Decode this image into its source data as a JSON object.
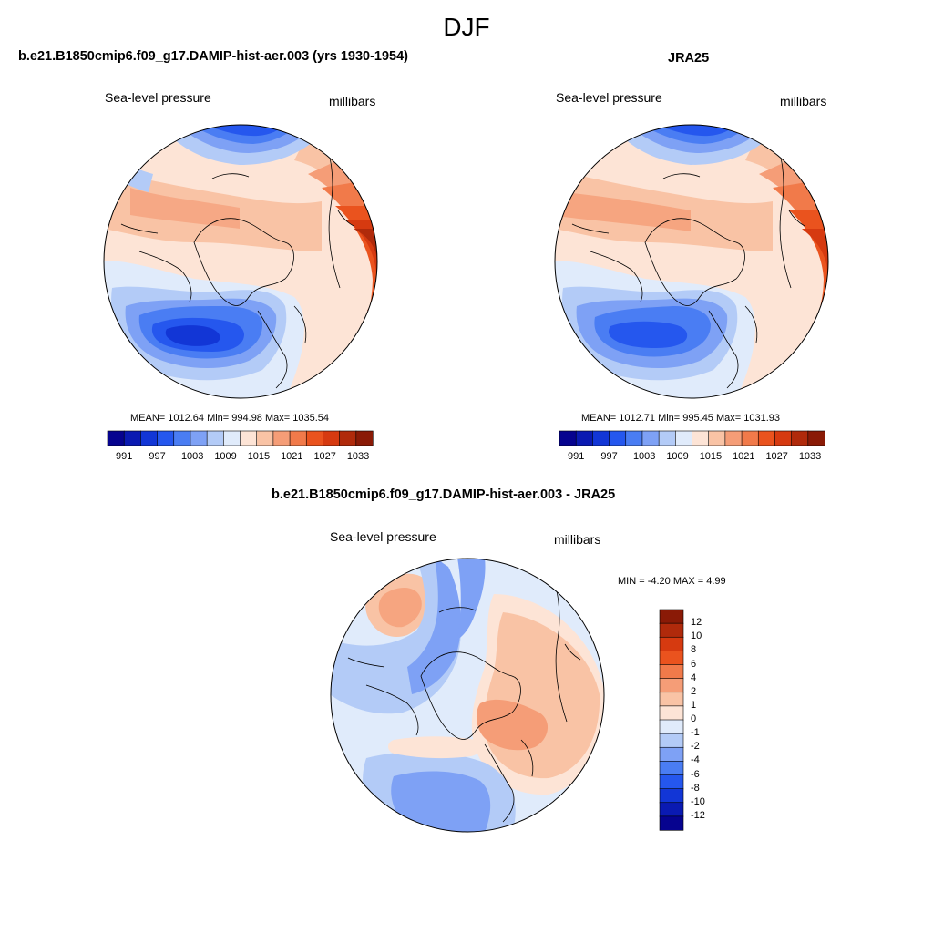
{
  "season": "DJF",
  "colors": {
    "abs_palette": [
      "#06038f",
      "#0a1ab2",
      "#1236d6",
      "#2557ee",
      "#4a7df3",
      "#7ea1f5",
      "#b3cbf7",
      "#e0ebfb",
      "#fde4d6",
      "#f9c3a5",
      "#f59d77",
      "#f17a4a",
      "#ea531e",
      "#d63a10",
      "#b02a0b",
      "#8a1a06"
    ],
    "diff_palette": [
      "#06038f",
      "#0a1ab2",
      "#1236d6",
      "#2557ee",
      "#4a7df3",
      "#7ea1f5",
      "#b3cbf7",
      "#e0ebfb",
      "#fde4d6",
      "#f9c3a5",
      "#f59d77",
      "#f17a4a",
      "#ea531e",
      "#d63a10",
      "#b02a0b",
      "#8a1a06"
    ]
  },
  "panels": [
    {
      "id": "model",
      "title": "b.e21.B1850cmip6.f09_g17.DAMIP-hist-aer.003 (yrs 1930-1954)",
      "left_label": "Sea-level pressure",
      "right_label": "millibars",
      "stats": "MEAN= 1012.64  Min= 994.98  Max= 1035.54",
      "colorbar_ticks": [
        "991",
        "997",
        "1003",
        "1009",
        "1015",
        "1021",
        "1027",
        "1033"
      ]
    },
    {
      "id": "obs",
      "title": "JRA25",
      "left_label": "Sea-level pressure",
      "right_label": "millibars",
      "stats": "MEAN= 1012.71  Min= 995.45  Max= 1031.93",
      "colorbar_ticks": [
        "991",
        "997",
        "1003",
        "1009",
        "1015",
        "1021",
        "1027",
        "1033"
      ]
    },
    {
      "id": "diff",
      "title": "b.e21.B1850cmip6.f09_g17.DAMIP-hist-aer.003 - JRA25",
      "left_label": "Sea-level pressure",
      "right_label": "millibars",
      "stats": "MIN =  -4.20 MAX =   4.99",
      "colorbar_ticks": [
        "12",
        "10",
        "8",
        "6",
        "4",
        "2",
        "1",
        "0",
        "-1",
        "-2",
        "-4",
        "-6",
        "-8",
        "-10",
        "-12"
      ]
    }
  ]
}
